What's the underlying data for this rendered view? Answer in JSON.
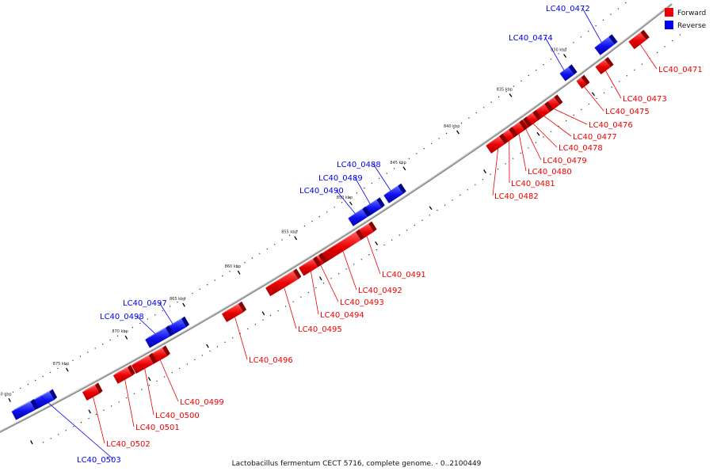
{
  "caption": "Lactobacillus fermentum CECT 5716, complete genome. - 0..2100449",
  "legend": [
    {
      "label": "Forward",
      "color": "#ee0000"
    },
    {
      "label": "Reverse",
      "color": "#0000ee"
    }
  ],
  "colors": {
    "forward": "#ee0000",
    "reverse": "#0000ee",
    "backbone": "#7a7a7a"
  },
  "ticks": [
    "830 kbp",
    "835 kbp",
    "840 kbp",
    "845 kbp",
    "850 kbp",
    "855 kbp",
    "860 kbp",
    "865 kbp",
    "870 kbp",
    "875 kbp",
    "880 kbp"
  ],
  "genes": [
    {
      "id": "LC40_0471",
      "strand": "forward"
    },
    {
      "id": "LC40_0472",
      "strand": "reverse"
    },
    {
      "id": "LC40_0473",
      "strand": "forward"
    },
    {
      "id": "LC40_0474",
      "strand": "reverse"
    },
    {
      "id": "LC40_0475",
      "strand": "forward"
    },
    {
      "id": "LC40_0476",
      "strand": "forward"
    },
    {
      "id": "LC40_0477",
      "strand": "forward"
    },
    {
      "id": "LC40_0478",
      "strand": "forward"
    },
    {
      "id": "LC40_0479",
      "strand": "forward"
    },
    {
      "id": "LC40_0480",
      "strand": "forward"
    },
    {
      "id": "LC40_0481",
      "strand": "forward"
    },
    {
      "id": "LC40_0482",
      "strand": "forward"
    },
    {
      "id": "LC40_0488",
      "strand": "reverse"
    },
    {
      "id": "LC40_0489",
      "strand": "reverse"
    },
    {
      "id": "LC40_0490",
      "strand": "reverse"
    },
    {
      "id": "LC40_0491",
      "strand": "forward"
    },
    {
      "id": "LC40_0492",
      "strand": "forward"
    },
    {
      "id": "LC40_0493",
      "strand": "forward"
    },
    {
      "id": "LC40_0494",
      "strand": "forward"
    },
    {
      "id": "LC40_0495",
      "strand": "forward"
    },
    {
      "id": "LC40_0496",
      "strand": "forward"
    },
    {
      "id": "LC40_0497",
      "strand": "reverse"
    },
    {
      "id": "LC40_0498",
      "strand": "reverse"
    },
    {
      "id": "LC40_0499",
      "strand": "forward"
    },
    {
      "id": "LC40_0500",
      "strand": "forward"
    },
    {
      "id": "LC40_0501",
      "strand": "forward"
    },
    {
      "id": "LC40_0502",
      "strand": "forward"
    },
    {
      "id": "LC40_0503",
      "strand": "reverse"
    }
  ]
}
